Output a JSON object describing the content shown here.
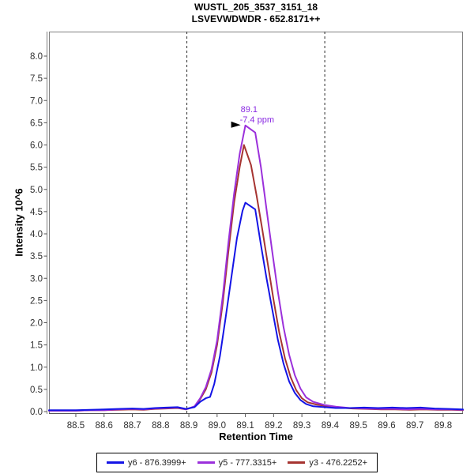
{
  "header": {
    "title_line1": "WUSTL_205_3537_3151_18",
    "title_line2": "LSVEVWDWDR - 652.8171++"
  },
  "chart_data": {
    "type": "line",
    "title": "WUSTL_205_3537_3151_18 / LSVEVWDWDR - 652.8171++",
    "xlabel": "Retention Time",
    "ylabel": "Intensity 10^6",
    "xlim": [
      88.405,
      89.87
    ],
    "ylim": [
      0,
      8.55
    ],
    "x_ticks": [
      "88.5",
      "88.6",
      "88.7",
      "88.8",
      "88.9",
      "89.0",
      "89.1",
      "89.2",
      "89.3",
      "89.4",
      "89.5",
      "89.6",
      "89.7",
      "89.8"
    ],
    "y_ticks": [
      "0.0",
      "0.5",
      "1.0",
      "1.5",
      "2.0",
      "2.5",
      "3.0",
      "3.5",
      "4.0",
      "4.5",
      "5.0",
      "5.5",
      "6.0",
      "6.5",
      "7.0",
      "7.5",
      "8.0"
    ],
    "grid": false,
    "legend_position": "bottom-center",
    "peak_boundaries": [
      88.893,
      89.381
    ],
    "annotation": {
      "line1": "89.1",
      "line2": "-7.4 ppm",
      "x": 89.1,
      "y": 6.44,
      "color": "#8A2BE2"
    },
    "axis_colors": {
      "box": "#808080",
      "axis": "#555555",
      "tick_text": "#303030",
      "boundary": "#2a2a2a"
    },
    "series": [
      {
        "name": "y6 - 876.3999+",
        "color": "#1414E6",
        "apex": [
          89.1,
          4.7
        ],
        "points": [
          [
            88.405,
            0.03
          ],
          [
            88.45,
            0.03
          ],
          [
            88.5,
            0.03
          ],
          [
            88.55,
            0.04
          ],
          [
            88.6,
            0.05
          ],
          [
            88.65,
            0.06
          ],
          [
            88.7,
            0.07
          ],
          [
            88.74,
            0.06
          ],
          [
            88.78,
            0.08
          ],
          [
            88.82,
            0.09
          ],
          [
            88.86,
            0.1
          ],
          [
            88.89,
            0.06
          ],
          [
            88.92,
            0.1
          ],
          [
            88.94,
            0.22
          ],
          [
            88.96,
            0.3
          ],
          [
            88.975,
            0.33
          ],
          [
            88.99,
            0.62
          ],
          [
            89.01,
            1.25
          ],
          [
            89.03,
            2.1
          ],
          [
            89.05,
            3.0
          ],
          [
            89.07,
            3.9
          ],
          [
            89.09,
            4.52
          ],
          [
            89.1,
            4.7
          ],
          [
            89.135,
            4.55
          ],
          [
            89.155,
            3.75
          ],
          [
            89.175,
            3.0
          ],
          [
            89.195,
            2.3
          ],
          [
            89.215,
            1.62
          ],
          [
            89.235,
            1.08
          ],
          [
            89.255,
            0.68
          ],
          [
            89.275,
            0.42
          ],
          [
            89.295,
            0.26
          ],
          [
            89.315,
            0.17
          ],
          [
            89.34,
            0.12
          ],
          [
            89.38,
            0.1
          ],
          [
            89.42,
            0.08
          ],
          [
            89.47,
            0.08
          ],
          [
            89.52,
            0.09
          ],
          [
            89.57,
            0.08
          ],
          [
            89.62,
            0.09
          ],
          [
            89.67,
            0.08
          ],
          [
            89.72,
            0.09
          ],
          [
            89.77,
            0.07
          ],
          [
            89.82,
            0.06
          ],
          [
            89.87,
            0.05
          ]
        ]
      },
      {
        "name": "y5 - 777.3315+",
        "color": "#9B30DB",
        "apex": [
          89.1,
          6.44
        ],
        "points": [
          [
            88.405,
            0.02
          ],
          [
            88.45,
            0.02
          ],
          [
            88.5,
            0.02
          ],
          [
            88.55,
            0.03
          ],
          [
            88.6,
            0.03
          ],
          [
            88.65,
            0.05
          ],
          [
            88.7,
            0.06
          ],
          [
            88.74,
            0.05
          ],
          [
            88.78,
            0.07
          ],
          [
            88.82,
            0.08
          ],
          [
            88.86,
            0.09
          ],
          [
            88.89,
            0.05
          ],
          [
            88.92,
            0.12
          ],
          [
            88.94,
            0.3
          ],
          [
            88.96,
            0.55
          ],
          [
            88.98,
            0.95
          ],
          [
            89.0,
            1.6
          ],
          [
            89.02,
            2.6
          ],
          [
            89.04,
            3.8
          ],
          [
            89.06,
            4.9
          ],
          [
            89.08,
            5.8
          ],
          [
            89.1,
            6.44
          ],
          [
            89.135,
            6.28
          ],
          [
            89.155,
            5.5
          ],
          [
            89.175,
            4.55
          ],
          [
            89.195,
            3.6
          ],
          [
            89.215,
            2.7
          ],
          [
            89.235,
            1.9
          ],
          [
            89.255,
            1.28
          ],
          [
            89.275,
            0.82
          ],
          [
            89.295,
            0.52
          ],
          [
            89.315,
            0.32
          ],
          [
            89.34,
            0.22
          ],
          [
            89.38,
            0.15
          ],
          [
            89.42,
            0.11
          ],
          [
            89.47,
            0.08
          ],
          [
            89.52,
            0.07
          ],
          [
            89.57,
            0.06
          ],
          [
            89.62,
            0.06
          ],
          [
            89.67,
            0.05
          ],
          [
            89.72,
            0.06
          ],
          [
            89.77,
            0.05
          ],
          [
            89.82,
            0.05
          ],
          [
            89.87,
            0.04
          ]
        ]
      },
      {
        "name": "y3 - 476.2252+",
        "color": "#A63431",
        "apex": [
          89.095,
          6.0
        ],
        "points": [
          [
            88.405,
            0.02
          ],
          [
            88.45,
            0.02
          ],
          [
            88.5,
            0.02
          ],
          [
            88.55,
            0.03
          ],
          [
            88.6,
            0.03
          ],
          [
            88.65,
            0.04
          ],
          [
            88.7,
            0.05
          ],
          [
            88.74,
            0.04
          ],
          [
            88.78,
            0.06
          ],
          [
            88.82,
            0.07
          ],
          [
            88.86,
            0.08
          ],
          [
            88.89,
            0.05
          ],
          [
            88.92,
            0.11
          ],
          [
            88.94,
            0.28
          ],
          [
            88.96,
            0.5
          ],
          [
            88.98,
            0.88
          ],
          [
            89.0,
            1.5
          ],
          [
            89.02,
            2.45
          ],
          [
            89.04,
            3.6
          ],
          [
            89.06,
            4.7
          ],
          [
            89.08,
            5.5
          ],
          [
            89.095,
            6.0
          ],
          [
            89.12,
            5.55
          ],
          [
            89.14,
            4.85
          ],
          [
            89.16,
            4.1
          ],
          [
            89.18,
            3.3
          ],
          [
            89.2,
            2.5
          ],
          [
            89.22,
            1.78
          ],
          [
            89.24,
            1.2
          ],
          [
            89.26,
            0.78
          ],
          [
            89.28,
            0.48
          ],
          [
            89.3,
            0.3
          ],
          [
            89.32,
            0.21
          ],
          [
            89.35,
            0.16
          ],
          [
            89.39,
            0.12
          ],
          [
            89.43,
            0.09
          ],
          [
            89.48,
            0.07
          ],
          [
            89.53,
            0.06
          ],
          [
            89.58,
            0.05
          ],
          [
            89.63,
            0.05
          ],
          [
            89.68,
            0.04
          ],
          [
            89.73,
            0.05
          ],
          [
            89.78,
            0.04
          ],
          [
            89.83,
            0.04
          ],
          [
            89.87,
            0.03
          ]
        ]
      }
    ]
  }
}
